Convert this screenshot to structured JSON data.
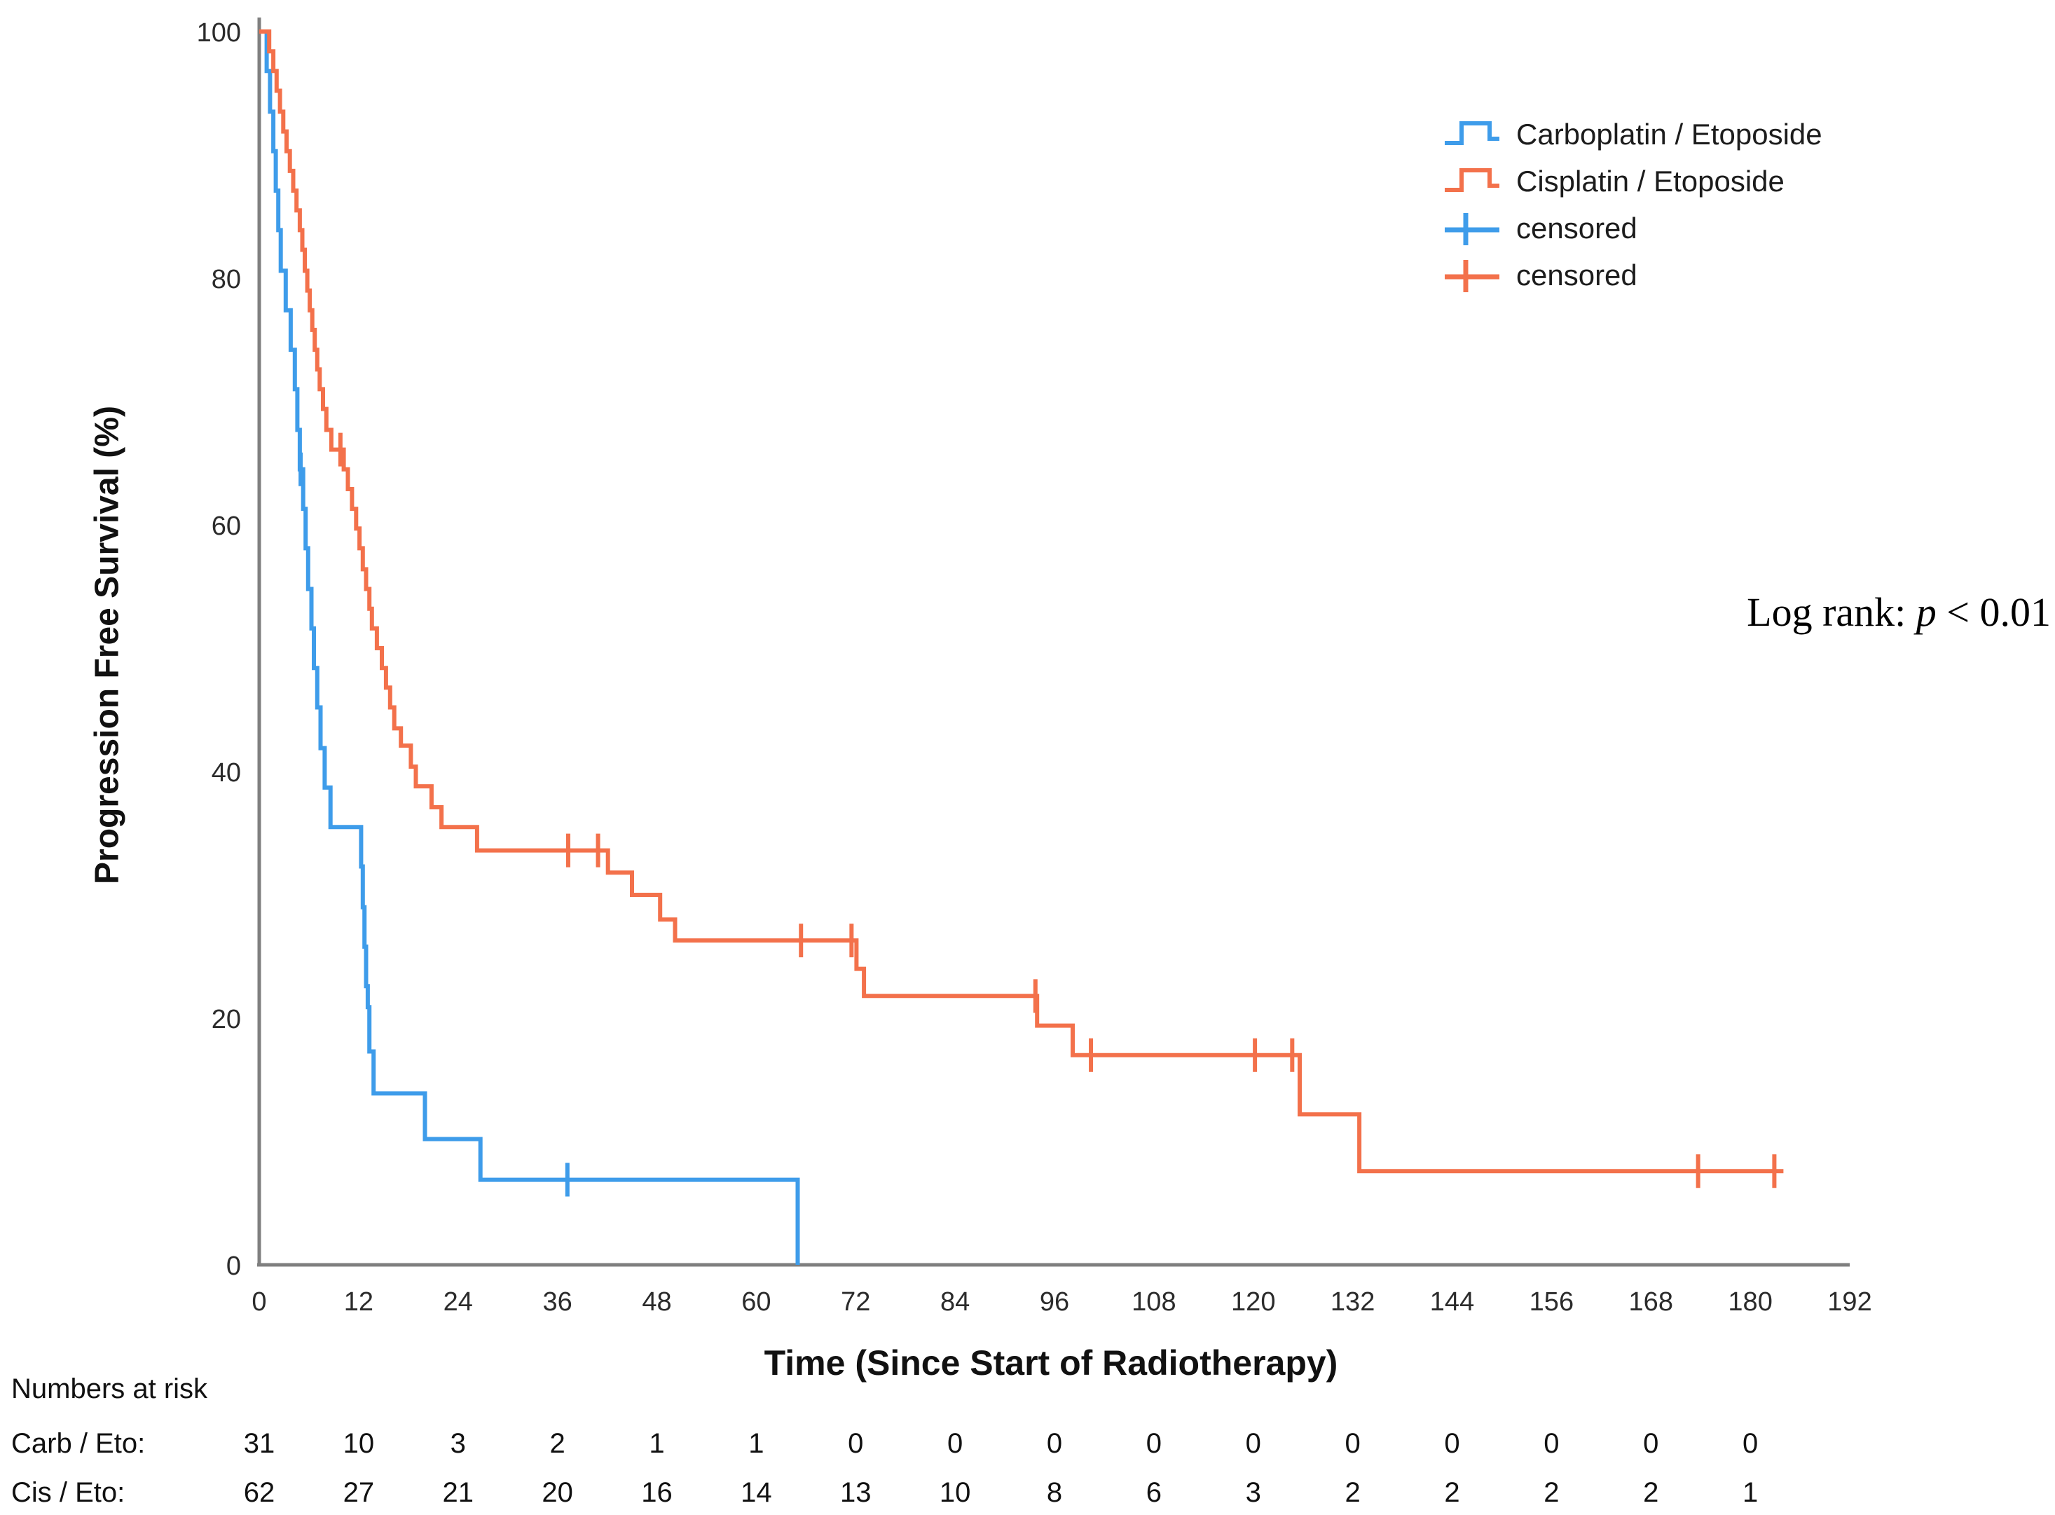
{
  "annotation": {
    "prefix": "Log rank: ",
    "p_symbol": "p",
    "comparison": " < 0.01"
  },
  "colors": {
    "carboplatin": "#3E9CEA",
    "cisplatin": "#F3714B",
    "axis": "#7f7f7f"
  },
  "legend": {
    "items": [
      {
        "label": "Carboplatin / Etoposide",
        "color": "#3E9CEA",
        "symbol": "step-line"
      },
      {
        "label": "Cisplatin / Etoposide",
        "color": "#F3714B",
        "symbol": "step-line"
      },
      {
        "label": "censored",
        "color": "#3E9CEA",
        "symbol": "plus"
      },
      {
        "label": "censored",
        "color": "#F3714B",
        "symbol": "plus"
      }
    ]
  },
  "chart_data": {
    "type": "line",
    "subtype": "kaplan-meier-step",
    "title": "",
    "xlabel": "Time (Since Start of Radiotherapy)",
    "ylabel": "Progression Free Survival (%)",
    "xlim": [
      0,
      192
    ],
    "ylim": [
      0,
      100
    ],
    "xticks": [
      0,
      12,
      24,
      36,
      48,
      60,
      72,
      84,
      96,
      108,
      120,
      132,
      144,
      156,
      168,
      180,
      192
    ],
    "yticks": [
      0,
      20,
      40,
      60,
      80,
      100
    ],
    "grid": false,
    "legend_position": "upper right",
    "series": [
      {
        "name": "Carboplatin / Etoposide",
        "color": "#3E9CEA",
        "end": 65,
        "points": [
          [
            0,
            100
          ],
          [
            0.9,
            96.8
          ],
          [
            1.3,
            93.5
          ],
          [
            1.7,
            90.3
          ],
          [
            2.0,
            87.1
          ],
          [
            2.3,
            83.9
          ],
          [
            2.6,
            80.6
          ],
          [
            3.2,
            77.4
          ],
          [
            3.8,
            74.2
          ],
          [
            4.3,
            71.0
          ],
          [
            4.6,
            67.7
          ],
          [
            4.9,
            64.5
          ],
          [
            5.3,
            61.3
          ],
          [
            5.6,
            58.1
          ],
          [
            5.9,
            54.8
          ],
          [
            6.3,
            51.6
          ],
          [
            6.6,
            48.4
          ],
          [
            7.0,
            45.2
          ],
          [
            7.4,
            41.9
          ],
          [
            7.9,
            38.7
          ],
          [
            8.6,
            35.5
          ],
          [
            12.3,
            32.3
          ],
          [
            12.5,
            29.0
          ],
          [
            12.7,
            25.8
          ],
          [
            12.9,
            22.6
          ],
          [
            13.1,
            20.9
          ],
          [
            13.3,
            17.3
          ],
          [
            13.8,
            13.9
          ],
          [
            20.0,
            10.2
          ],
          [
            26.7,
            6.9
          ],
          [
            65.0,
            0
          ]
        ],
        "censored": [
          [
            5.0,
            64.5
          ],
          [
            37.2,
            6.9
          ]
        ]
      },
      {
        "name": "Cisplatin / Etoposide",
        "color": "#F3714B",
        "end": 184,
        "points": [
          [
            0,
            100
          ],
          [
            1.2,
            98.4
          ],
          [
            1.7,
            96.8
          ],
          [
            2.1,
            95.2
          ],
          [
            2.5,
            93.5
          ],
          [
            2.9,
            91.9
          ],
          [
            3.3,
            90.3
          ],
          [
            3.7,
            88.7
          ],
          [
            4.1,
            87.1
          ],
          [
            4.5,
            85.5
          ],
          [
            4.9,
            83.9
          ],
          [
            5.2,
            82.3
          ],
          [
            5.5,
            80.6
          ],
          [
            5.8,
            79.0
          ],
          [
            6.1,
            77.4
          ],
          [
            6.4,
            75.8
          ],
          [
            6.7,
            74.2
          ],
          [
            7.0,
            72.6
          ],
          [
            7.3,
            71.0
          ],
          [
            7.7,
            69.4
          ],
          [
            8.1,
            67.7
          ],
          [
            8.7,
            66.1
          ],
          [
            10.2,
            64.5
          ],
          [
            10.7,
            62.9
          ],
          [
            11.2,
            61.3
          ],
          [
            11.7,
            59.7
          ],
          [
            12.1,
            58.1
          ],
          [
            12.5,
            56.4
          ],
          [
            12.9,
            54.8
          ],
          [
            13.3,
            53.2
          ],
          [
            13.6,
            51.6
          ],
          [
            14.2,
            50.0
          ],
          [
            14.8,
            48.4
          ],
          [
            15.3,
            46.8
          ],
          [
            15.8,
            45.2
          ],
          [
            16.3,
            43.5
          ],
          [
            17.1,
            42.1
          ],
          [
            18.3,
            40.4
          ],
          [
            18.9,
            38.8
          ],
          [
            20.8,
            37.1
          ],
          [
            22.0,
            35.5
          ],
          [
            26.3,
            33.6
          ],
          [
            42.1,
            31.8
          ],
          [
            45.0,
            30.0
          ],
          [
            48.4,
            28.0
          ],
          [
            50.2,
            26.3
          ],
          [
            72.1,
            24.0
          ],
          [
            73.0,
            21.8
          ],
          [
            93.9,
            19.4
          ],
          [
            98.2,
            17.0
          ],
          [
            125.6,
            12.2
          ],
          [
            132.8,
            7.6
          ]
        ],
        "censored": [
          [
            9.8,
            66.1
          ],
          [
            37.3,
            33.6
          ],
          [
            40.9,
            33.6
          ],
          [
            65.4,
            26.3
          ],
          [
            71.5,
            26.3
          ],
          [
            93.7,
            21.8
          ],
          [
            100.4,
            17.0
          ],
          [
            120.2,
            17.0
          ],
          [
            124.7,
            17.0
          ],
          [
            173.7,
            7.6
          ],
          [
            182.9,
            7.6
          ]
        ]
      }
    ]
  },
  "risk_table": {
    "title": "Numbers at risk",
    "times": [
      0,
      12,
      24,
      36,
      48,
      60,
      72,
      84,
      96,
      108,
      120,
      132,
      144,
      156,
      168,
      180
    ],
    "rows": [
      {
        "label": "Carb / Eto:",
        "values": [
          31,
          10,
          3,
          2,
          1,
          1,
          0,
          0,
          0,
          0,
          0,
          0,
          0,
          0,
          0,
          0
        ]
      },
      {
        "label": "Cis / Eto:",
        "values": [
          62,
          27,
          21,
          20,
          16,
          14,
          13,
          10,
          8,
          6,
          3,
          2,
          2,
          2,
          2,
          1
        ]
      }
    ]
  }
}
